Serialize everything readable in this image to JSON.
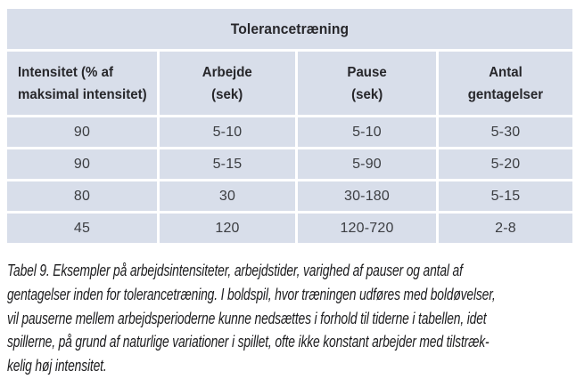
{
  "table": {
    "title": "Tolerancetræning",
    "columns": [
      {
        "line1": "Intensitet (% af",
        "line2": "maksimal intensitet)"
      },
      {
        "line1": "Arbejde",
        "line2": "(sek)"
      },
      {
        "line1": "Pause",
        "line2": "(sek)"
      },
      {
        "line1": "Antal",
        "line2": "gentagelser"
      }
    ],
    "rows": [
      [
        "90",
        "5-10",
        "5-10",
        "5-30"
      ],
      [
        "90",
        "5-15",
        "5-90",
        "5-20"
      ],
      [
        "80",
        "30",
        "30-180",
        "5-15"
      ],
      [
        "45",
        "120",
        "120-720",
        "2-8"
      ]
    ]
  },
  "caption": {
    "label": "Tabel 9.",
    "lines": [
      "Tabel 9. Eksempler på arbejdsintensiteter, arbejdstider, varighed af pauser og antal af",
      "gentagelser inden for tolerancetræning. I boldspil, hvor træningen udføres med boldøvelser,",
      "vil pauserne mellem arbejdsperioderne kunne nedsættes i forhold til tiderne i tabellen, idet",
      "spillerne, på grund af naturlige variationer i spillet, ofte ikke konstant arbejder med tilstræk-",
      "kelig høj intensitet."
    ]
  },
  "colors": {
    "page_bg": "#ffffff",
    "cell_bg": "#d8deea",
    "gap_color": "#ffffff",
    "heading_text": "#27272b",
    "body_text": "#3b3d41",
    "caption_text": "#1c1c1e"
  }
}
